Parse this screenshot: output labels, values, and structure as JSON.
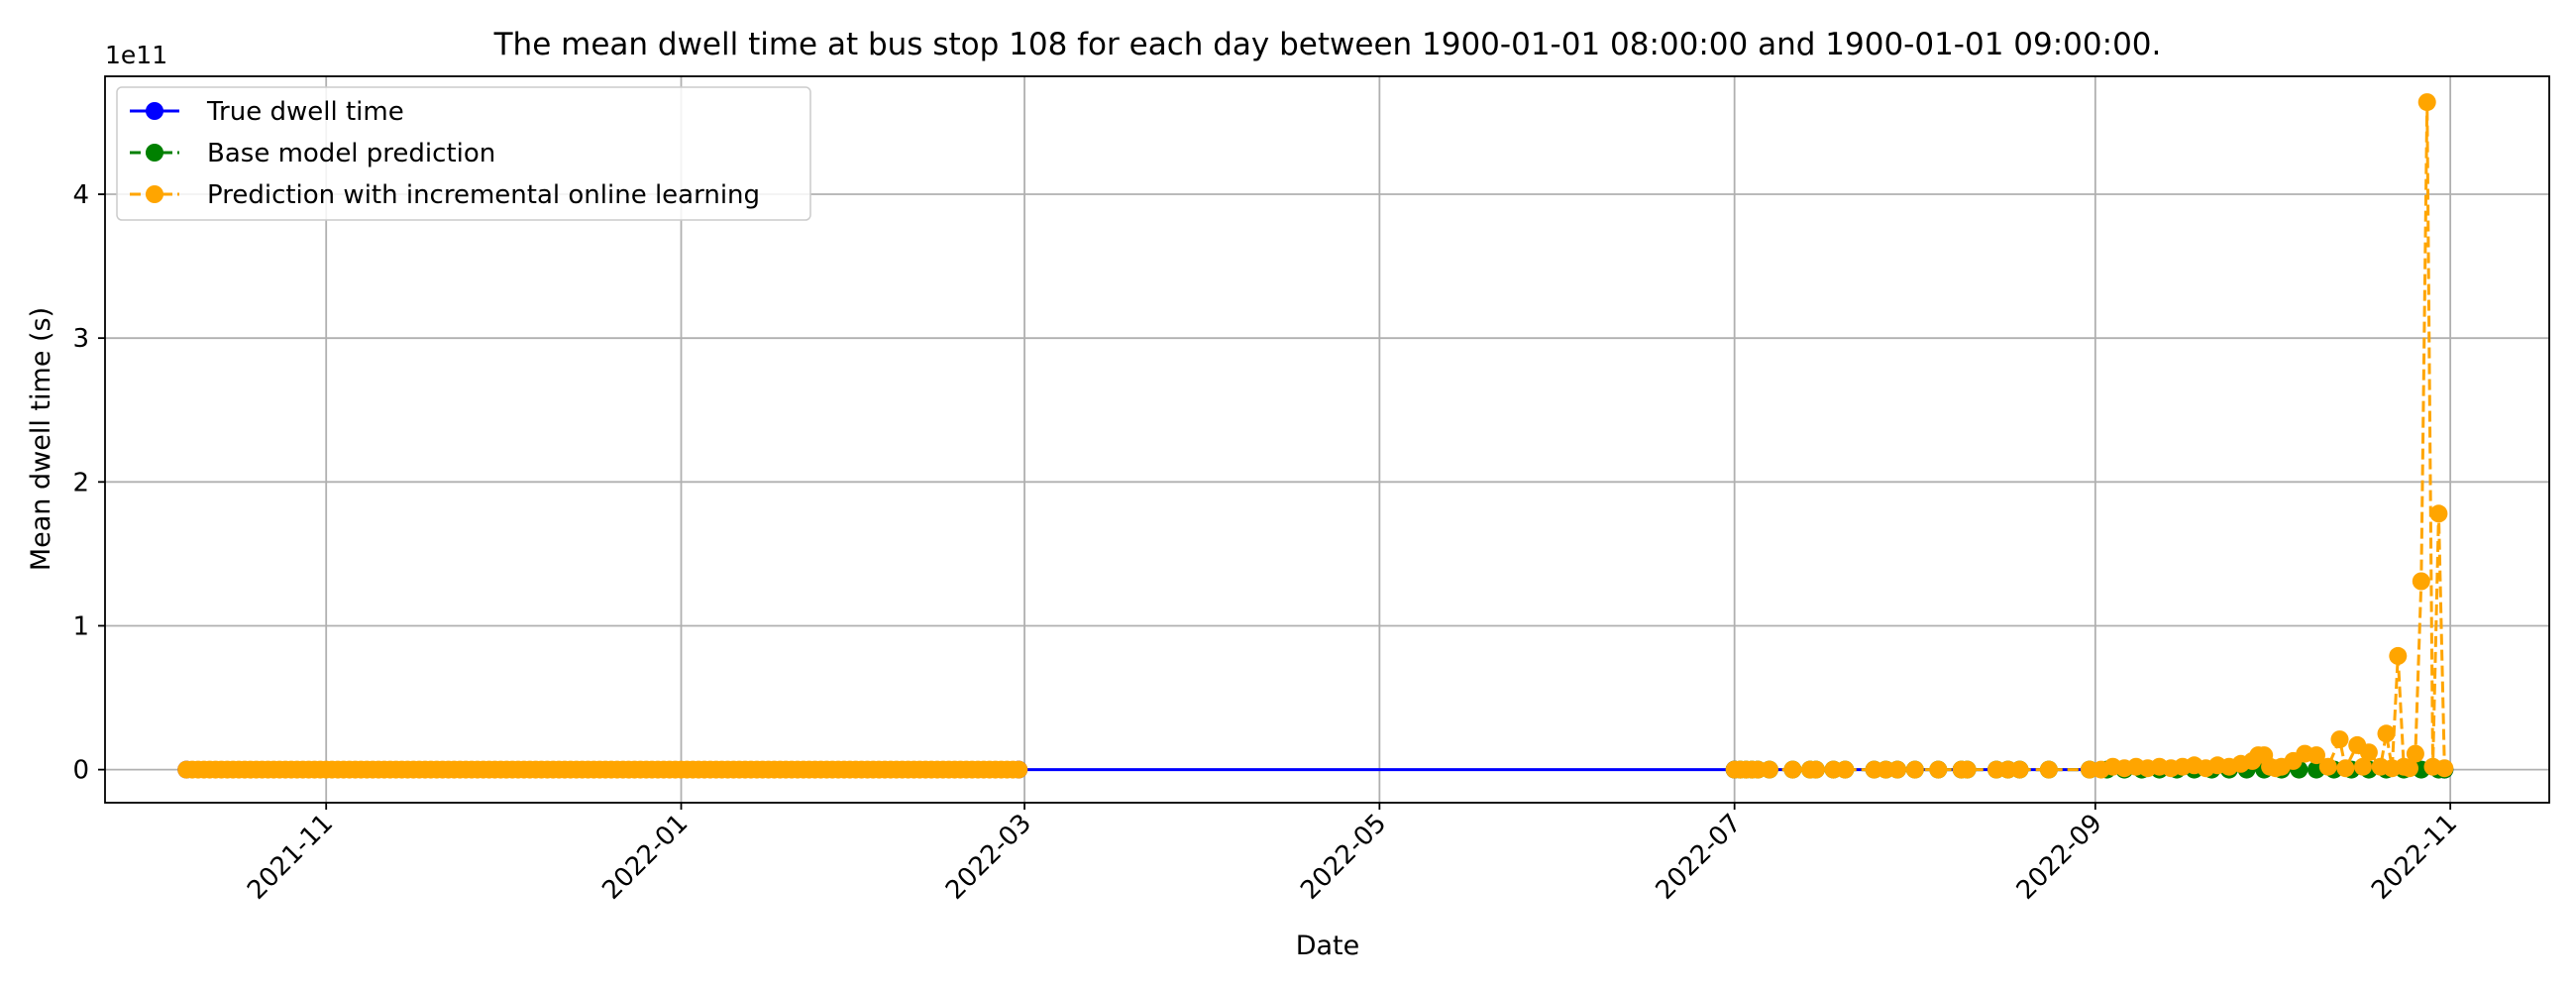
{
  "chart_data": {
    "type": "line",
    "title": "The mean dwell time at bus stop 108 for each day between 1900-01-01 08:00:00 and 1900-01-01 09:00:00.",
    "xlabel": "Date",
    "ylabel": "Mean dwell time (s)",
    "y_offset_label": "1e11",
    "y_scale_multiplier": 100000000000,
    "xlim": [
      "2021-09-24",
      "2022-11-18"
    ],
    "ylim": [
      -0.23,
      4.82
    ],
    "x_ticks": [
      "2021-11-01",
      "2022-01-01",
      "2022-03-01",
      "2022-05-01",
      "2022-07-01",
      "2022-09-01",
      "2022-11-01"
    ],
    "x_tick_labels": [
      "2021-11",
      "2022-01",
      "2022-03",
      "2022-05",
      "2022-07",
      "2022-09",
      "2022-11"
    ],
    "y_ticks": [
      0,
      1,
      2,
      3,
      4
    ],
    "y_tick_labels": [
      "0",
      "1",
      "2",
      "3",
      "4"
    ],
    "grid": true,
    "legend_position": "upper-left",
    "series": [
      {
        "name": "True dwell time",
        "color": "#0000ff",
        "linestyle": "solid",
        "x": [
          "2021-10-08",
          "2022-02-28",
          "2022-07-01",
          "2022-10-31"
        ],
        "values": [
          0,
          0,
          0,
          0
        ]
      },
      {
        "name": "Base model prediction",
        "color": "#008000",
        "linestyle": "dashed",
        "x": [
          "2022-07-01",
          "2022-07-02",
          "2022-07-03",
          "2022-07-04",
          "2022-07-05",
          "2022-07-07",
          "2022-07-11",
          "2022-07-14",
          "2022-07-15",
          "2022-07-18",
          "2022-07-20",
          "2022-07-25",
          "2022-07-27",
          "2022-07-29",
          "2022-08-01",
          "2022-08-05",
          "2022-08-09",
          "2022-08-10",
          "2022-08-15",
          "2022-08-17",
          "2022-08-19",
          "2022-08-24",
          "2022-08-31",
          "2022-09-03",
          "2022-09-06",
          "2022-09-09",
          "2022-09-12",
          "2022-09-15",
          "2022-09-18",
          "2022-09-21",
          "2022-09-24",
          "2022-09-27",
          "2022-09-30",
          "2022-10-03",
          "2022-10-06",
          "2022-10-09",
          "2022-10-12",
          "2022-10-15",
          "2022-10-18",
          "2022-10-21",
          "2022-10-24",
          "2022-10-27",
          "2022-10-30",
          "2022-10-31"
        ],
        "values": [
          0,
          0,
          0,
          0,
          0,
          0,
          0,
          0,
          0,
          0,
          0,
          0,
          0,
          0,
          0,
          0,
          0,
          0,
          0,
          0,
          0,
          0,
          0,
          0,
          0,
          0,
          0,
          0,
          0,
          0,
          0,
          0,
          0,
          0,
          0,
          0,
          0,
          0,
          0,
          0,
          0,
          0,
          0,
          0
        ]
      },
      {
        "name": "Prediction with incremental online learning",
        "color": "#ffa500",
        "linestyle": "dashed",
        "x": [
          "2022-07-01",
          "2022-07-02",
          "2022-07-03",
          "2022-07-04",
          "2022-07-05",
          "2022-07-07",
          "2022-07-11",
          "2022-07-14",
          "2022-07-15",
          "2022-07-18",
          "2022-07-20",
          "2022-07-25",
          "2022-07-27",
          "2022-07-29",
          "2022-08-01",
          "2022-08-05",
          "2022-08-09",
          "2022-08-10",
          "2022-08-15",
          "2022-08-17",
          "2022-08-19",
          "2022-08-24",
          "2022-08-31",
          "2022-09-02",
          "2022-09-04",
          "2022-09-06",
          "2022-09-08",
          "2022-09-10",
          "2022-09-12",
          "2022-09-14",
          "2022-09-16",
          "2022-09-18",
          "2022-09-20",
          "2022-09-22",
          "2022-09-24",
          "2022-09-26",
          "2022-09-28",
          "2022-09-29",
          "2022-09-30",
          "2022-10-01",
          "2022-10-02",
          "2022-10-03",
          "2022-10-05",
          "2022-10-07",
          "2022-10-09",
          "2022-10-11",
          "2022-10-13",
          "2022-10-14",
          "2022-10-16",
          "2022-10-17",
          "2022-10-18",
          "2022-10-20",
          "2022-10-21",
          "2022-10-22",
          "2022-10-23",
          "2022-10-24",
          "2022-10-25",
          "2022-10-26",
          "2022-10-27",
          "2022-10-28",
          "2022-10-29",
          "2022-10-30",
          "2022-10-31"
        ],
        "values": [
          0,
          0,
          0,
          0,
          0,
          0,
          0,
          0,
          0,
          0,
          0,
          0,
          0,
          0,
          0,
          0,
          0,
          0,
          0,
          0,
          0,
          0,
          0,
          0,
          0.02,
          0.01,
          0.02,
          0.01,
          0.02,
          0.01,
          0.02,
          0.03,
          0.01,
          0.03,
          0.02,
          0.04,
          0.06,
          0.1,
          0.1,
          0.02,
          0.01,
          0.02,
          0.06,
          0.11,
          0.1,
          0.02,
          0.21,
          0.01,
          0.17,
          0.02,
          0.12,
          0.02,
          0.25,
          0.01,
          0.79,
          0.02,
          0.01,
          0.11,
          1.31,
          4.64,
          0.02,
          1.78,
          0.01
        ]
      }
    ]
  }
}
